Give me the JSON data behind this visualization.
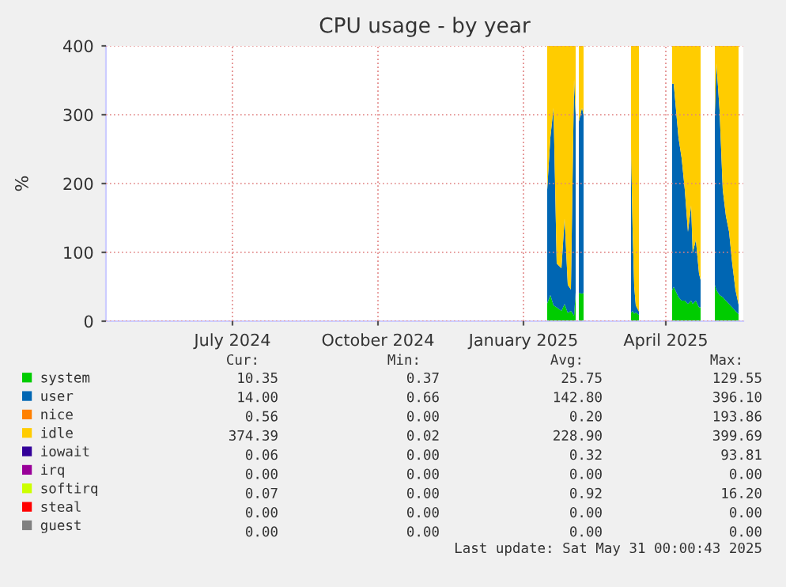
{
  "chart_data": {
    "type": "area",
    "stacked": true,
    "title": "CPU usage - by year",
    "ylabel": "%",
    "x": [
      "2025-01-16",
      "2025-01-18",
      "2025-01-20",
      "2025-01-22",
      "2025-01-25",
      "2025-01-27",
      "2025-01-29",
      "2025-01-31",
      "2025-02-02",
      "2025-02-03",
      "2025-02-04",
      "2025-02-05",
      "2025-02-07",
      "2025-02-08",
      "2025-02-20",
      "2025-03-10",
      "2025-03-11",
      "2025-03-12",
      "2025-03-13",
      "2025-03-15",
      "2025-03-25",
      "2025-04-05",
      "2025-04-06",
      "2025-04-09",
      "2025-04-11",
      "2025-04-13",
      "2025-04-15",
      "2025-04-17",
      "2025-04-18",
      "2025-04-20",
      "2025-04-22",
      "2025-04-23",
      "2025-04-27",
      "2025-05-02",
      "2025-05-03",
      "2025-05-05",
      "2025-05-07",
      "2025-05-09",
      "2025-05-11",
      "2025-05-13",
      "2025-05-15",
      "2025-05-17"
    ],
    "series": [
      {
        "name": "system",
        "color": "#00cc00",
        "values": [
          26,
          38,
          23,
          20,
          15,
          25,
          12,
          15,
          8,
          42,
          null,
          41,
          40,
          41,
          null,
          12,
          15,
          11,
          13,
          9,
          null,
          45,
          50,
          35,
          30,
          30,
          25,
          30,
          25,
          30,
          20,
          20,
          null,
          53,
          45,
          38,
          35,
          30,
          25,
          20,
          15,
          10
        ]
      },
      {
        "name": "user",
        "color": "#0066b3",
        "values": [
          165,
          229,
          287,
          64,
          62,
          124,
          41,
          31,
          344,
          258,
          null,
          249,
          270,
          259,
          null,
          240,
          120,
          40,
          10,
          5,
          null,
          300,
          295,
          232,
          207,
          161,
          105,
          138,
          74,
          88,
          49,
          40,
          null,
          247,
          330,
          268,
          156,
          123,
          105,
          64,
          31,
          14
        ]
      },
      {
        "name": "nice",
        "color": "#ff8000",
        "values": [
          null,
          null,
          null,
          null,
          null,
          null,
          null,
          null,
          null,
          null,
          null,
          null,
          null,
          null,
          null,
          null,
          null,
          null,
          null,
          null,
          null,
          null,
          null,
          null,
          null,
          null,
          null,
          null,
          null,
          null,
          null,
          null,
          null,
          null,
          null,
          null,
          null,
          null,
          null,
          null,
          null,
          null
        ]
      },
      {
        "name": "idle",
        "color": "#ffcc00",
        "values": [
          209,
          133,
          90,
          316,
          323,
          251,
          347,
          354,
          48,
          100,
          null,
          110,
          90,
          100,
          null,
          148,
          265,
          349,
          377,
          386,
          null,
          55,
          55,
          133,
          163,
          209,
          270,
          232,
          301,
          282,
          331,
          340,
          null,
          100,
          25,
          94,
          209,
          247,
          270,
          316,
          354,
          376
        ]
      },
      {
        "name": "iowait",
        "color": "#330099",
        "values": [
          null,
          null,
          null,
          null,
          null,
          null,
          null,
          null,
          null,
          null,
          null,
          null,
          null,
          null,
          null,
          null,
          null,
          null,
          null,
          null,
          null,
          null,
          null,
          null,
          null,
          null,
          null,
          null,
          null,
          null,
          null,
          null,
          null,
          null,
          null,
          null,
          null,
          null,
          null,
          null,
          null,
          null
        ]
      },
      {
        "name": "irq",
        "color": "#990099",
        "values": [
          null,
          null,
          null,
          null,
          null,
          null,
          null,
          null,
          null,
          null,
          null,
          null,
          null,
          null,
          null,
          null,
          null,
          null,
          null,
          null,
          null,
          null,
          null,
          null,
          null,
          null,
          null,
          null,
          null,
          null,
          null,
          null,
          null,
          null,
          null,
          null,
          null,
          null,
          null,
          null,
          null,
          null
        ]
      },
      {
        "name": "softirq",
        "color": "#ccff00",
        "values": [
          null,
          null,
          null,
          null,
          null,
          null,
          null,
          null,
          null,
          null,
          null,
          null,
          null,
          null,
          null,
          null,
          null,
          null,
          null,
          null,
          null,
          null,
          null,
          null,
          null,
          null,
          null,
          null,
          null,
          null,
          null,
          null,
          null,
          null,
          null,
          null,
          null,
          null,
          null,
          null,
          null,
          null
        ]
      },
      {
        "name": "steal",
        "color": "#ff0000",
        "values": [
          null,
          null,
          null,
          null,
          null,
          null,
          null,
          null,
          null,
          null,
          null,
          null,
          null,
          null,
          null,
          null,
          null,
          null,
          null,
          null,
          null,
          null,
          null,
          null,
          null,
          null,
          null,
          null,
          null,
          null,
          null,
          null,
          null,
          null,
          null,
          null,
          null,
          null,
          null,
          null,
          null,
          null
        ]
      },
      {
        "name": "guest",
        "color": "#808080",
        "values": [
          null,
          null,
          null,
          null,
          null,
          null,
          null,
          null,
          null,
          null,
          null,
          null,
          null,
          null,
          null,
          null,
          null,
          null,
          null,
          null,
          null,
          null,
          null,
          null,
          null,
          null,
          null,
          null,
          null,
          null,
          null,
          null,
          null,
          null,
          null,
          null,
          null,
          null,
          null,
          null,
          null,
          null
        ]
      }
    ],
    "xlim": [
      "2024-04-12",
      "2025-05-20"
    ],
    "xticks": [
      {
        "value": "2024-07-01",
        "label": "July 2024"
      },
      {
        "value": "2024-10-01",
        "label": "October 2024"
      },
      {
        "value": "2025-01-01",
        "label": "January 2025"
      },
      {
        "value": "2025-04-01",
        "label": "April 2025"
      }
    ],
    "ylim": [
      0,
      400
    ],
    "yticks": [
      0,
      100,
      200,
      300,
      400
    ],
    "grid": true,
    "legend": "bottom",
    "annotations": [
      "Cur:",
      "Min:",
      "Avg:",
      "Max:",
      "10.35",
      "0.37",
      "25.75",
      "129.55",
      "14.00",
      "0.66",
      "142.80",
      "396.10",
      "0.56",
      "0.00",
      "0.20",
      "193.86",
      "374.39",
      "0.02",
      "228.90",
      "399.69",
      "0.06",
      "0.00",
      "0.32",
      "93.81",
      "0.00",
      "0.00",
      "0.00",
      "0.00",
      "0.07",
      "0.00",
      "0.92",
      "16.20",
      "0.00",
      "0.00",
      "0.00",
      "0.00",
      "0.00",
      "0.00",
      "0.00",
      "0.00",
      "Last update: Sat May 31 00:00:43 2025"
    ]
  }
}
